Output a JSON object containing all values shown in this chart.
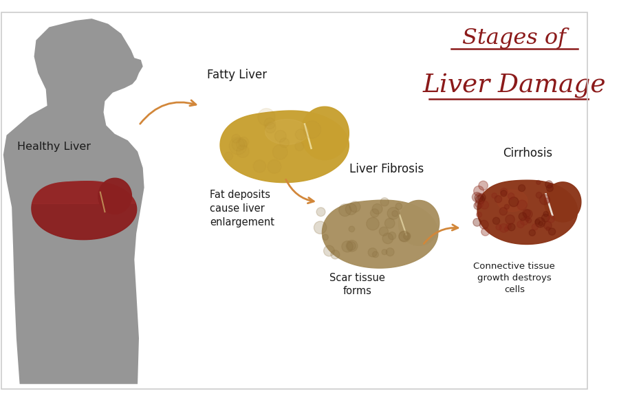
{
  "bg_color": "#ffffff",
  "title_line1": "Stages of",
  "title_line2": "Liver Damage",
  "title_color": "#8B1A1A",
  "title_underline_color": "#8B1A1A",
  "label_healthy": "Healthy Liver",
  "label_fatty": "Fatty Liver",
  "label_fibrosis": "Liver Fibrosis",
  "label_cirrhosis": "Cirrhosis",
  "desc_fatty": "Fat deposits\ncause liver\nenlargement",
  "desc_fibrosis": "Scar tissue\nforms",
  "desc_cirrhosis": "Connective tissue\ngrowth destroys\ncells",
  "arrow_color": "#D2873A",
  "text_color": "#1a1a1a",
  "silhouette_color": "#969696",
  "healthy_liver_color": "#8B2020",
  "healthy_liver_highlight": "#A83030",
  "fatty_liver_color": "#C8A030",
  "fatty_liver_light": "#D4B050",
  "fibrosis_liver_color": "#A89060",
  "fibrosis_liver_light": "#B8A070",
  "cirrhosis_liver_color": "#8B3518",
  "cirrhosis_liver_light": "#A04020"
}
